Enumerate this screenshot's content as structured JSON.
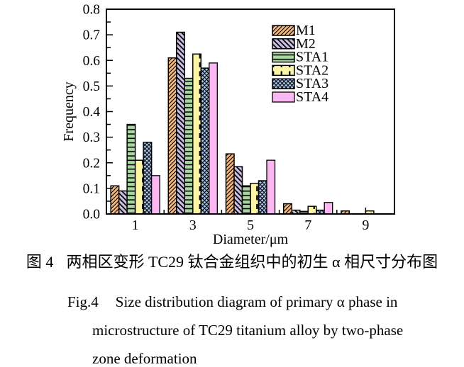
{
  "captions": {
    "zh_label": "图 4",
    "zh_text": "两相区变形 TC29 钛合金组织中的初生 α 相尺寸分布图",
    "en_label": "Fig.4",
    "en_line1": "Size distribution diagram of primary α phase in",
    "en_line2": "microstructure of TC29 titanium alloy by two-phase",
    "en_line3": "zone deformation"
  },
  "chart_data": {
    "type": "bar",
    "title": "",
    "xlabel": "Diameter/μm",
    "ylabel": "Frequency",
    "categories": [
      1,
      3,
      5,
      7,
      9
    ],
    "xlim": [
      0,
      10
    ],
    "ylim": [
      0,
      0.8
    ],
    "y_major_step": 0.1,
    "y_minor_step": 0.05,
    "x_minor_ticks": [
      2,
      4,
      6,
      8
    ],
    "grid": false,
    "legend_position": "top-right-inside",
    "frame_color": "#000000",
    "series": [
      {
        "name": "M1",
        "color": "#f4b77e",
        "hatch": "/",
        "values": [
          0.11,
          0.61,
          0.235,
          0.04,
          0.012
        ]
      },
      {
        "name": "M2",
        "color": "#c9bcdf",
        "hatch": "\\",
        "values": [
          0.09,
          0.71,
          0.185,
          0.015,
          0
        ]
      },
      {
        "name": "STA1",
        "color": "#a9d7a1",
        "hatch": "-",
        "values": [
          0.35,
          0.53,
          0.11,
          0.01,
          0
        ]
      },
      {
        "name": "STA2",
        "color": "#fcf5a5",
        "hatch": "|dash",
        "values": [
          0.21,
          0.625,
          0.12,
          0.03,
          0.012
        ]
      },
      {
        "name": "STA3",
        "color": "#a9c6ef",
        "hatch": "x",
        "values": [
          0.28,
          0.57,
          0.13,
          0.015,
          0
        ]
      },
      {
        "name": "STA4",
        "color": "#fab7f1",
        "hatch": "",
        "values": [
          0.15,
          0.59,
          0.21,
          0.045,
          0
        ]
      }
    ]
  }
}
